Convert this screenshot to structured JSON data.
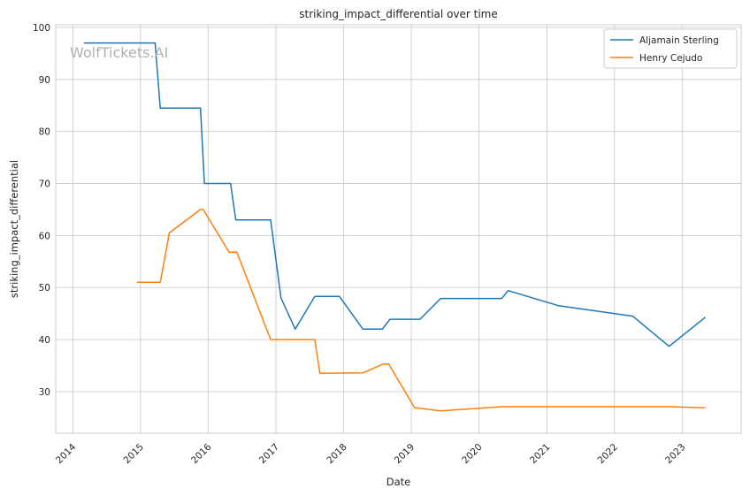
{
  "chart_data": {
    "type": "line",
    "title": "striking_impact_differential over time",
    "xlabel": "Date",
    "ylabel": "striking_impact_differential",
    "watermark": "WolfTickets.AI",
    "grid": true,
    "legend_position": "top-right",
    "x_tick_labels": [
      "2014",
      "2015",
      "2016",
      "2017",
      "2018",
      "2019",
      "2020",
      "2021",
      "2022",
      "2023"
    ],
    "y_ticks": [
      30,
      40,
      50,
      60,
      70,
      80,
      90,
      100
    ],
    "xlim": [
      "2013-10-01",
      "2023-11-15"
    ],
    "ylim": [
      22,
      100.5
    ],
    "series": [
      {
        "name": "Aljamain Sterling",
        "color": "#1f77b4",
        "points": [
          [
            "2014-03-01",
            97.0
          ],
          [
            "2015-03-21",
            97.0
          ],
          [
            "2015-04-18",
            84.5
          ],
          [
            "2015-11-21",
            84.5
          ],
          [
            "2015-12-12",
            70.0
          ],
          [
            "2016-05-01",
            70.0
          ],
          [
            "2016-05-29",
            63.0
          ],
          [
            "2016-12-03",
            63.0
          ],
          [
            "2017-01-28",
            48.0
          ],
          [
            "2017-04-15",
            42.0
          ],
          [
            "2017-07-29",
            48.3
          ],
          [
            "2017-12-09",
            48.3
          ],
          [
            "2018-04-15",
            42.0
          ],
          [
            "2018-07-28",
            42.0
          ],
          [
            "2018-09-08",
            43.9
          ],
          [
            "2019-02-17",
            43.9
          ],
          [
            "2019-06-08",
            47.9
          ],
          [
            "2020-05-02",
            47.9
          ],
          [
            "2020-06-06",
            49.4
          ],
          [
            "2021-03-06",
            46.5
          ],
          [
            "2022-04-09",
            44.5
          ],
          [
            "2022-10-22",
            38.7
          ],
          [
            "2023-05-06",
            44.3
          ]
        ]
      },
      {
        "name": "Henry Cejudo",
        "color": "#ff7f0e",
        "points": [
          [
            "2014-12-13",
            51.0
          ],
          [
            "2015-04-18",
            51.0
          ],
          [
            "2015-06-06",
            60.5
          ],
          [
            "2015-11-21",
            65.0
          ],
          [
            "2015-12-05",
            65.0
          ],
          [
            "2016-04-23",
            56.8
          ],
          [
            "2016-06-04",
            56.8
          ],
          [
            "2016-12-03",
            40.0
          ],
          [
            "2017-07-29",
            40.0
          ],
          [
            "2017-08-26",
            33.5
          ],
          [
            "2018-04-15",
            33.6
          ],
          [
            "2018-08-04",
            35.3
          ],
          [
            "2018-09-01",
            35.3
          ],
          [
            "2019-01-19",
            26.9
          ],
          [
            "2019-02-16",
            26.8
          ],
          [
            "2019-06-08",
            26.3
          ],
          [
            "2020-05-09",
            27.1
          ],
          [
            "2022-10-22",
            27.1
          ],
          [
            "2023-05-06",
            26.9
          ]
        ]
      }
    ]
  }
}
